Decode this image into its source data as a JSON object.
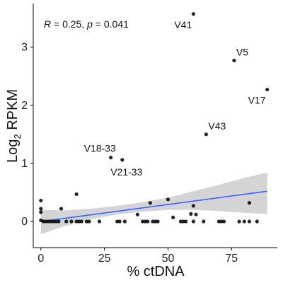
{
  "chart_data": {
    "type": "scatter",
    "xlabel": "% ctDNA",
    "ylabel_main": "Log",
    "ylabel_sub": "2",
    "ylabel_rest": " RPKM",
    "xlim": [
      -3,
      93
    ],
    "ylim": [
      -0.45,
      3.75
    ],
    "x_ticks": [
      0,
      25,
      50,
      75
    ],
    "x_tick_labels": [
      "0",
      "25",
      "50",
      "75"
    ],
    "y_ticks": [
      0,
      1,
      2,
      3
    ],
    "y_tick_labels": [
      "0",
      "1",
      "2",
      "3"
    ],
    "grid": false,
    "stat_text": {
      "r_symbol": "R",
      "r_value": " = 0.25, ",
      "p_symbol": "p",
      "p_value": " = 0.041"
    },
    "fit_line": {
      "x": [
        0,
        89
      ],
      "y": [
        0.0,
        0.52
      ]
    },
    "confidence_band": {
      "x": [
        0,
        10,
        20,
        30,
        40,
        50,
        60,
        70,
        80,
        89
      ],
      "lower": [
        -0.22,
        -0.07,
        0.04,
        0.12,
        0.17,
        0.2,
        0.2,
        0.18,
        0.15,
        0.13
      ],
      "upper": [
        0.2,
        0.19,
        0.22,
        0.27,
        0.33,
        0.41,
        0.52,
        0.63,
        0.75,
        0.84
      ]
    },
    "points": [
      {
        "x": 0,
        "y": 0.36
      },
      {
        "x": 0,
        "y": 0.22
      },
      {
        "x": 0,
        "y": 0.16
      },
      {
        "x": 0,
        "y": 0.02
      },
      {
        "x": 1,
        "y": 0.0
      },
      {
        "x": 2,
        "y": 0.0
      },
      {
        "x": 3,
        "y": 0.0
      },
      {
        "x": 4,
        "y": 0.0
      },
      {
        "x": 5,
        "y": 0.0
      },
      {
        "x": 6,
        "y": 0.0
      },
      {
        "x": 7,
        "y": 0.0
      },
      {
        "x": 8,
        "y": 0.22
      },
      {
        "x": 10,
        "y": 0.0
      },
      {
        "x": 12,
        "y": 0.0
      },
      {
        "x": 14,
        "y": 0.47
      },
      {
        "x": 14,
        "y": 0.0
      },
      {
        "x": 15,
        "y": 0.0
      },
      {
        "x": 16,
        "y": 0.0
      },
      {
        "x": 18,
        "y": 0.0
      },
      {
        "x": 19,
        "y": 0.0
      },
      {
        "x": 23,
        "y": 0.0
      },
      {
        "x": 27.5,
        "y": 1.1
      },
      {
        "x": 30,
        "y": 0.0
      },
      {
        "x": 31,
        "y": 0.0
      },
      {
        "x": 32,
        "y": 1.06
      },
      {
        "x": 33,
        "y": 0.0
      },
      {
        "x": 38,
        "y": 0.12
      },
      {
        "x": 40,
        "y": 0.0
      },
      {
        "x": 41,
        "y": 0.0
      },
      {
        "x": 42,
        "y": 0.0
      },
      {
        "x": 43,
        "y": 0.32
      },
      {
        "x": 44,
        "y": 0.0
      },
      {
        "x": 45,
        "y": 0.0
      },
      {
        "x": 46,
        "y": 0.0
      },
      {
        "x": 50,
        "y": 0.38
      },
      {
        "x": 52,
        "y": 0.07
      },
      {
        "x": 55,
        "y": 0.0
      },
      {
        "x": 56,
        "y": 0.0
      },
      {
        "x": 57,
        "y": 0.0
      },
      {
        "x": 59,
        "y": 0.13
      },
      {
        "x": 60,
        "y": 0.27
      },
      {
        "x": 60,
        "y": 0.0
      },
      {
        "x": 61,
        "y": 0.12
      },
      {
        "x": 65,
        "y": 1.5
      },
      {
        "x": 64,
        "y": 0.0
      },
      {
        "x": 70,
        "y": 0.0
      },
      {
        "x": 71,
        "y": 0.0
      },
      {
        "x": 72,
        "y": 0.0
      },
      {
        "x": 78,
        "y": 0.0
      },
      {
        "x": 80,
        "y": 0.0
      },
      {
        "x": 82,
        "y": 0.0
      },
      {
        "x": 82,
        "y": 0.32
      },
      {
        "x": 85,
        "y": 0.0
      },
      {
        "x": 60,
        "y": 3.57
      },
      {
        "x": 76,
        "y": 2.77
      },
      {
        "x": 89,
        "y": 2.27
      }
    ],
    "annotations": [
      {
        "text": "V41",
        "x": 60,
        "y": 3.57,
        "pos": "below-left"
      },
      {
        "text": "V5",
        "x": 76,
        "y": 2.77,
        "pos": "above-right"
      },
      {
        "text": "V17",
        "x": 89,
        "y": 2.27,
        "pos": "below-left"
      },
      {
        "text": "V43",
        "x": 65,
        "y": 1.5,
        "pos": "above-right"
      },
      {
        "text": "V18-33",
        "x": 27.5,
        "y": 1.1,
        "pos": "above-left"
      },
      {
        "text": "V21-33",
        "x": 32,
        "y": 1.06,
        "pos": "below"
      }
    ],
    "colors": {
      "points": "#000000",
      "fit_line": "#3366ff",
      "band": "#cccccc",
      "axis": "#000000"
    }
  }
}
